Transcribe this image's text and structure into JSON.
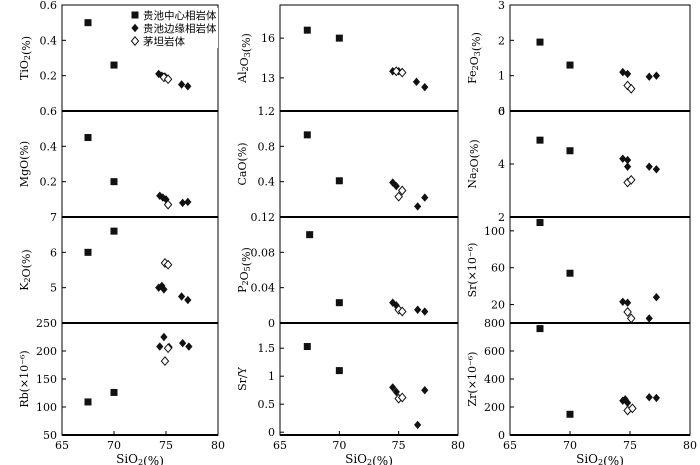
{
  "chart_data": {
    "type": "scatter",
    "figure": "Harker variation diagrams (SiO2 vs. oxides / trace elements)",
    "shared_xlabel": "SiO2(%)",
    "xlim": [
      65,
      80
    ],
    "x_ticks": [
      "65",
      "70",
      "75",
      "80"
    ],
    "legend": {
      "placement": "top-left of first panel",
      "entries": [
        {
          "name": "贵池中心相岩体",
          "marker": "square-filled"
        },
        {
          "name": "贵池边缘相岩体",
          "marker": "diamond-filled"
        },
        {
          "name": "茅坦岩体",
          "marker": "diamond-open"
        }
      ]
    },
    "series_names": [
      "贵池中心相岩体",
      "贵池边缘相岩体",
      "茅坦岩体"
    ],
    "panels": [
      {
        "id": "TiO2",
        "ylabel": "TiO2(%)",
        "ylim": [
          0,
          0.6
        ],
        "yticks": [
          "0.2",
          "0.4",
          "0.6"
        ],
        "series": [
          {
            "name": "贵池中心相岩体",
            "points": [
              [
                67.5,
                0.5
              ],
              [
                70.0,
                0.26
              ]
            ]
          },
          {
            "name": "贵池边缘相岩体",
            "points": [
              [
                74.3,
                0.21
              ],
              [
                74.6,
                0.2
              ],
              [
                74.9,
                0.195
              ],
              [
                76.5,
                0.15
              ],
              [
                77.1,
                0.14
              ]
            ]
          },
          {
            "name": "茅坦岩体",
            "points": [
              [
                74.8,
                0.19
              ],
              [
                75.2,
                0.18
              ]
            ]
          }
        ]
      },
      {
        "id": "Al2O3",
        "ylabel": "Al2O3(%)",
        "ylim": [
          10.5,
          18.5
        ],
        "yticks": [
          "13",
          "16"
        ],
        "series": [
          {
            "name": "贵池中心相岩体",
            "points": [
              [
                67.3,
                16.6
              ],
              [
                70.0,
                16.0
              ]
            ]
          },
          {
            "name": "贵池边缘相岩体",
            "points": [
              [
                74.5,
                13.5
              ],
              [
                75.0,
                13.5
              ],
              [
                76.5,
                12.7
              ],
              [
                77.2,
                12.3
              ]
            ]
          },
          {
            "name": "茅坦岩体",
            "points": [
              [
                74.8,
                13.5
              ],
              [
                75.3,
                13.4
              ]
            ]
          }
        ]
      },
      {
        "id": "Fe2O3",
        "ylabel": "Fe2O3(%)",
        "ylim": [
          0,
          3
        ],
        "yticks": [
          "0",
          "1",
          "2",
          "3"
        ],
        "series": [
          {
            "name": "贵池中心相岩体",
            "points": [
              [
                67.5,
                1.95
              ],
              [
                70.0,
                1.3
              ]
            ]
          },
          {
            "name": "贵池边缘相岩体",
            "points": [
              [
                74.4,
                1.1
              ],
              [
                74.8,
                1.05
              ],
              [
                76.6,
                0.97
              ],
              [
                77.2,
                1.0
              ]
            ]
          },
          {
            "name": "茅坦岩体",
            "points": [
              [
                74.8,
                0.72
              ],
              [
                75.1,
                0.63
              ]
            ]
          }
        ]
      },
      {
        "id": "MgO",
        "ylabel": "MgO(%)",
        "ylim": [
          0,
          0.6
        ],
        "yticks": [
          "0.2",
          "0.4",
          "0.6"
        ],
        "series": [
          {
            "name": "贵池中心相岩体",
            "points": [
              [
                67.5,
                0.45
              ],
              [
                70.0,
                0.2
              ]
            ]
          },
          {
            "name": "贵池边缘相岩体",
            "points": [
              [
                74.4,
                0.12
              ],
              [
                74.7,
                0.11
              ],
              [
                75.0,
                0.1
              ],
              [
                76.6,
                0.08
              ],
              [
                77.1,
                0.085
              ]
            ]
          },
          {
            "name": "茅坦岩体",
            "points": [
              [
                75.2,
                0.07
              ]
            ]
          }
        ]
      },
      {
        "id": "CaO",
        "ylabel": "CaO(%)",
        "ylim": [
          0,
          1.2
        ],
        "yticks": [
          "0.4",
          "0.8",
          "1.2"
        ],
        "series": [
          {
            "name": "贵池中心相岩体",
            "points": [
              [
                67.3,
                0.93
              ],
              [
                70.0,
                0.41
              ]
            ]
          },
          {
            "name": "贵池边缘相岩体",
            "points": [
              [
                74.5,
                0.39
              ],
              [
                74.8,
                0.35
              ],
              [
                76.6,
                0.12
              ],
              [
                77.2,
                0.22
              ]
            ]
          },
          {
            "name": "茅坦岩体",
            "points": [
              [
                75.0,
                0.23
              ],
              [
                75.3,
                0.3
              ]
            ]
          }
        ]
      },
      {
        "id": "Na2O",
        "ylabel": "Na2O(%)",
        "ylim": [
          2,
          6
        ],
        "yticks": [
          "2",
          "4",
          "6"
        ],
        "series": [
          {
            "name": "贵池中心相岩体",
            "points": [
              [
                67.5,
                4.9
              ],
              [
                70.0,
                4.5
              ]
            ]
          },
          {
            "name": "贵池边缘相岩体",
            "points": [
              [
                74.4,
                4.2
              ],
              [
                74.8,
                4.15
              ],
              [
                74.8,
                3.9
              ],
              [
                76.6,
                3.9
              ],
              [
                77.2,
                3.8
              ]
            ]
          },
          {
            "name": "茅坦岩体",
            "points": [
              [
                74.8,
                3.3
              ],
              [
                75.1,
                3.4
              ]
            ]
          }
        ]
      },
      {
        "id": "K2O",
        "ylabel": "K2O(%)",
        "ylim": [
          4,
          7
        ],
        "yticks": [
          "5",
          "6",
          "7"
        ],
        "series": [
          {
            "name": "贵池中心相岩体",
            "points": [
              [
                67.5,
                6.0
              ],
              [
                70.0,
                6.6
              ]
            ]
          },
          {
            "name": "贵池边缘相岩体",
            "points": [
              [
                74.3,
                5.0
              ],
              [
                74.6,
                5.05
              ],
              [
                74.8,
                4.95
              ],
              [
                76.5,
                4.75
              ],
              [
                77.1,
                4.65
              ]
            ]
          },
          {
            "name": "茅坦岩体",
            "points": [
              [
                74.9,
                5.7
              ],
              [
                75.2,
                5.65
              ]
            ]
          }
        ]
      },
      {
        "id": "P2O5",
        "ylabel": "P2O5(%)",
        "ylim": [
          0,
          0.12
        ],
        "yticks": [
          "0",
          "0.04",
          "0.08",
          "0.12"
        ],
        "series": [
          {
            "name": "贵池中心相岩体",
            "points": [
              [
                67.5,
                0.1
              ],
              [
                70.0,
                0.023
              ]
            ]
          },
          {
            "name": "贵池边缘相岩体",
            "points": [
              [
                74.5,
                0.023
              ],
              [
                74.8,
                0.02
              ],
              [
                76.6,
                0.015
              ],
              [
                77.2,
                0.013
              ]
            ]
          },
          {
            "name": "茅坦岩体",
            "points": [
              [
                75.0,
                0.015
              ],
              [
                75.3,
                0.013
              ]
            ]
          }
        ]
      },
      {
        "id": "Sr",
        "ylabel": "Sr(×10⁻⁶)",
        "ylim": [
          0,
          115
        ],
        "yticks": [
          "20",
          "60",
          "100"
        ],
        "series": [
          {
            "name": "贵池中心相岩体",
            "points": [
              [
                67.5,
                109
              ],
              [
                70.0,
                54
              ]
            ]
          },
          {
            "name": "贵池边缘相岩体",
            "points": [
              [
                74.4,
                23
              ],
              [
                74.8,
                22
              ],
              [
                76.6,
                5
              ],
              [
                77.2,
                28
              ]
            ]
          },
          {
            "name": "茅坦岩体",
            "points": [
              [
                74.8,
                12
              ],
              [
                75.1,
                5
              ]
            ]
          }
        ]
      },
      {
        "id": "Rb",
        "ylabel": "Rb(×10⁻⁶)",
        "ylim": [
          50,
          250
        ],
        "yticks": [
          "50",
          "100",
          "150",
          "200",
          "250"
        ],
        "series": [
          {
            "name": "贵池中心相岩体",
            "points": [
              [
                67.5,
                109
              ],
              [
                70.0,
                126
              ]
            ]
          },
          {
            "name": "贵池边缘相岩体",
            "points": [
              [
                74.4,
                208
              ],
              [
                74.8,
                225
              ],
              [
                75.3,
                207
              ],
              [
                76.6,
                214
              ],
              [
                77.2,
                208
              ]
            ]
          },
          {
            "name": "茅坦岩体",
            "points": [
              [
                74.9,
                182
              ],
              [
                75.2,
                205
              ]
            ]
          }
        ]
      },
      {
        "id": "SrY",
        "ylabel": "Sr/Y",
        "ylim": [
          -0.05,
          1.95
        ],
        "yticks": [
          "0",
          "0.5",
          "1",
          "1.5"
        ],
        "series": [
          {
            "name": "贵池中心相岩体",
            "points": [
              [
                67.3,
                1.53
              ],
              [
                70.0,
                1.1
              ]
            ]
          },
          {
            "name": "贵池边缘相岩体",
            "points": [
              [
                74.5,
                0.8
              ],
              [
                74.8,
                0.72
              ],
              [
                76.6,
                0.13
              ],
              [
                77.2,
                0.75
              ]
            ]
          },
          {
            "name": "茅坦岩体",
            "points": [
              [
                75.0,
                0.6
              ],
              [
                75.3,
                0.62
              ]
            ]
          }
        ]
      },
      {
        "id": "Zr",
        "ylabel": "Zr(×10⁻⁶)",
        "ylim": [
          0,
          800
        ],
        "yticks": [
          "0",
          "200",
          "400",
          "600",
          "800"
        ],
        "series": [
          {
            "name": "贵池中心相岩体",
            "points": [
              [
                67.5,
                760
              ],
              [
                70.0,
                148
              ]
            ]
          },
          {
            "name": "贵池边缘相岩体",
            "points": [
              [
                74.4,
                245
              ],
              [
                74.8,
                230
              ],
              [
                74.6,
                255
              ],
              [
                76.6,
                270
              ],
              [
                77.2,
                265
              ]
            ]
          },
          {
            "name": "茅坦岩体",
            "points": [
              [
                74.8,
                175
              ],
              [
                75.2,
                190
              ]
            ]
          }
        ]
      }
    ]
  }
}
